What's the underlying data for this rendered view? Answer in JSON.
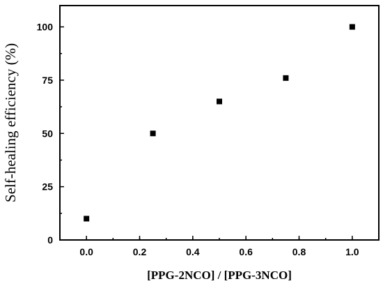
{
  "chart_data": {
    "type": "scatter",
    "xlabel": "[PPG-2NCO] / [PPG-3NCO]",
    "ylabel": "Self-healing efficiency (%)",
    "xlim": [
      -0.1,
      1.1
    ],
    "ylim": [
      0,
      110
    ],
    "x_ticks": [
      "0.0",
      "0.2",
      "0.4",
      "0.6",
      "0.8",
      "1.0"
    ],
    "x_tick_values": [
      0.0,
      0.2,
      0.4,
      0.6,
      0.8,
      1.0
    ],
    "y_ticks": [
      "0",
      "25",
      "50",
      "75",
      "100"
    ],
    "y_tick_values": [
      0,
      25,
      50,
      75,
      100
    ],
    "grid": false,
    "marker": "square",
    "marker_color": "#000000",
    "series": [
      {
        "x": [
          0.0,
          0.25,
          0.5,
          0.75,
          1.0
        ],
        "y": [
          10,
          50,
          65,
          76,
          100
        ]
      }
    ]
  }
}
